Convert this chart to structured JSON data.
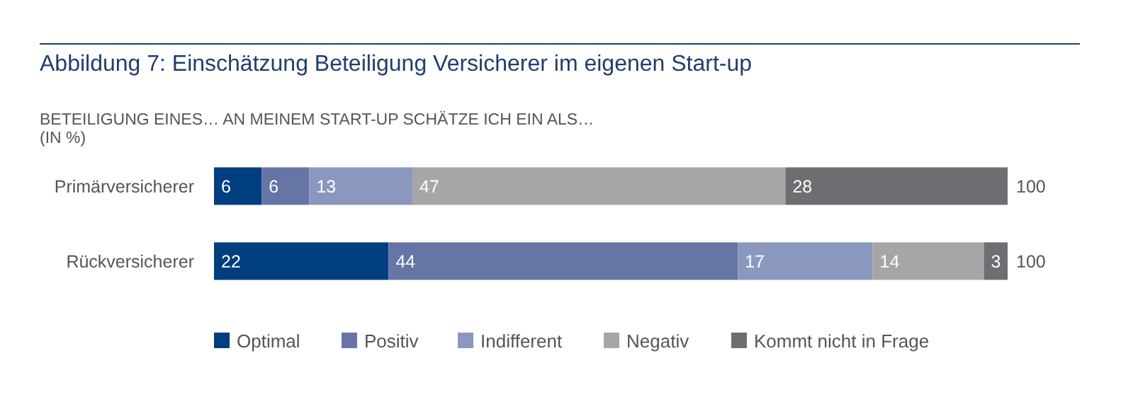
{
  "chart_data": {
    "type": "bar",
    "orientation": "horizontal",
    "stacked": true,
    "title": "Abbildung 7: Einschätzung Beteiligung Versicherer im eigenen Start-up",
    "subtitle": "BETEILIGUNG EINES… AN MEINEM START-UP SCHÄTZE ICH EIN ALS…\n(IN %)",
    "categories": [
      "Primärversicherer",
      "Rückversicherer"
    ],
    "series": [
      {
        "name": "Optimal",
        "color": "#003f7f",
        "values": [
          6,
          22
        ]
      },
      {
        "name": "Positiv",
        "color": "#6675a6",
        "values": [
          6,
          44
        ]
      },
      {
        "name": "Indifferent",
        "color": "#8a98c0",
        "values": [
          13,
          17
        ]
      },
      {
        "name": "Negativ",
        "color": "#a6a6a8",
        "values": [
          47,
          14
        ]
      },
      {
        "name": "Kommt nicht in Frage",
        "color": "#6d6e71",
        "values": [
          28,
          3
        ]
      }
    ],
    "xlim": [
      0,
      100
    ],
    "tick_labels": "y",
    "data_labels": true,
    "totals": [
      "100",
      "100"
    ],
    "legend": "bottom"
  }
}
